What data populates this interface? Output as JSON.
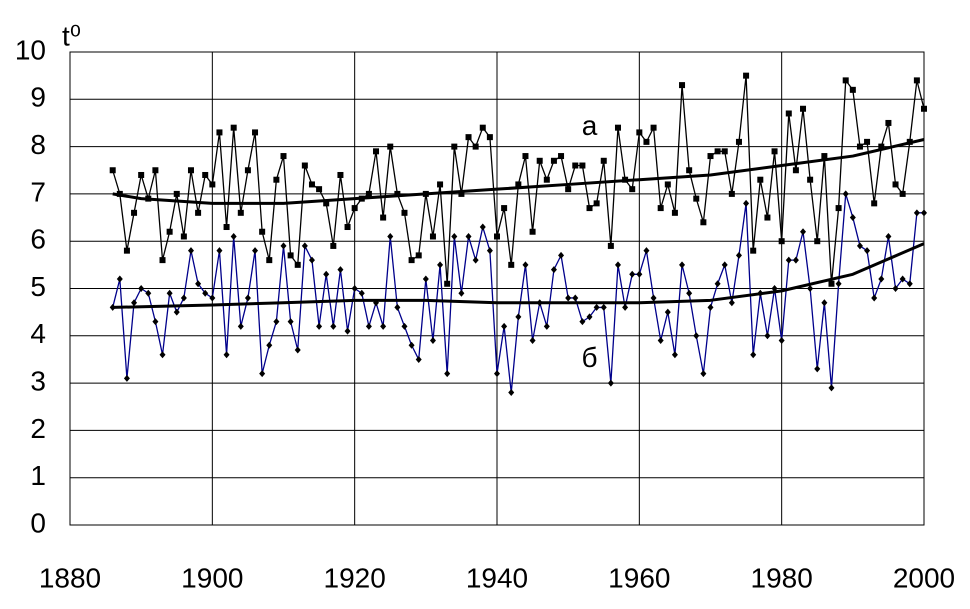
{
  "chart_data": {
    "type": "line",
    "y_label": "t⁰",
    "xlim": [
      1880,
      2000
    ],
    "xticks": [
      1880,
      1900,
      1920,
      1940,
      1960,
      1980,
      2000
    ],
    "ylim": [
      0,
      10
    ],
    "yticks": [
      0,
      1,
      2,
      3,
      4,
      5,
      6,
      7,
      8,
      9,
      10
    ],
    "grid": true,
    "annotations": [
      {
        "text": "а",
        "x": 1953,
        "y": 8.4
      },
      {
        "text": "б",
        "x": 1953,
        "y": 3.5
      }
    ],
    "series": [
      {
        "color": "#000000",
        "marker": "square",
        "x": [
          1886,
          1887,
          1888,
          1889,
          1890,
          1891,
          1892,
          1893,
          1894,
          1895,
          1896,
          1897,
          1898,
          1899,
          1900,
          1901,
          1902,
          1903,
          1904,
          1905,
          1906,
          1907,
          1908,
          1909,
          1910,
          1911,
          1912,
          1913,
          1914,
          1915,
          1916,
          1917,
          1918,
          1919,
          1920,
          1921,
          1922,
          1923,
          1924,
          1925,
          1926,
          1927,
          1928,
          1929,
          1930,
          1931,
          1932,
          1933,
          1934,
          1935,
          1936,
          1937,
          1938,
          1939,
          1940,
          1941,
          1942,
          1943,
          1944,
          1945,
          1946,
          1947,
          1948,
          1949,
          1950,
          1951,
          1952,
          1953,
          1954,
          1955,
          1956,
          1957,
          1958,
          1959,
          1960,
          1961,
          1962,
          1963,
          1964,
          1965,
          1966,
          1967,
          1968,
          1969,
          1970,
          1971,
          1972,
          1973,
          1974,
          1975,
          1976,
          1977,
          1978,
          1979,
          1980,
          1981,
          1982,
          1983,
          1984,
          1985,
          1986,
          1987,
          1988,
          1989,
          1990,
          1991,
          1992,
          1993,
          1994,
          1995,
          1996,
          1997,
          1998,
          1999,
          2000
        ],
        "values": [
          7.5,
          7.0,
          5.8,
          6.6,
          7.4,
          6.9,
          7.5,
          5.6,
          6.2,
          7.0,
          6.1,
          7.5,
          6.6,
          7.4,
          7.2,
          8.3,
          6.3,
          8.4,
          6.6,
          7.5,
          8.3,
          6.2,
          5.6,
          7.3,
          7.8,
          5.7,
          5.5,
          7.6,
          7.2,
          7.1,
          6.8,
          5.9,
          7.4,
          6.3,
          6.7,
          6.9,
          7.0,
          7.9,
          6.5,
          8.0,
          7.0,
          6.6,
          5.6,
          5.7,
          7.0,
          6.1,
          7.2,
          5.1,
          8.0,
          7.0,
          8.2,
          8.0,
          8.4,
          8.2,
          6.1,
          6.7,
          5.5,
          7.2,
          7.8,
          6.2,
          7.7,
          7.3,
          7.7,
          7.8,
          7.1,
          7.6,
          7.6,
          6.7,
          6.8,
          7.7,
          5.9,
          8.4,
          7.3,
          7.1,
          8.3,
          8.1,
          8.4,
          6.7,
          7.2,
          6.6,
          9.3,
          7.5,
          6.9,
          6.4,
          7.8,
          7.9,
          7.9,
          7.0,
          8.1,
          9.5,
          5.8,
          7.3,
          6.5,
          7.9,
          6.0,
          8.7,
          7.5,
          8.8,
          7.3,
          6.0,
          7.8,
          5.1,
          6.7,
          9.4,
          9.2,
          8.0,
          8.1,
          6.8,
          8.0,
          8.5,
          7.2,
          7.0,
          8.1,
          9.4,
          8.8
        ]
      },
      {
        "color": "#00008b",
        "marker": "diamond",
        "x": [
          1886,
          1887,
          1888,
          1889,
          1890,
          1891,
          1892,
          1893,
          1894,
          1895,
          1896,
          1897,
          1898,
          1899,
          1900,
          1901,
          1902,
          1903,
          1904,
          1905,
          1906,
          1907,
          1908,
          1909,
          1910,
          1911,
          1912,
          1913,
          1914,
          1915,
          1916,
          1917,
          1918,
          1919,
          1920,
          1921,
          1922,
          1923,
          1924,
          1925,
          1926,
          1927,
          1928,
          1929,
          1930,
          1931,
          1932,
          1933,
          1934,
          1935,
          1936,
          1937,
          1938,
          1939,
          1940,
          1941,
          1942,
          1943,
          1944,
          1945,
          1946,
          1947,
          1948,
          1949,
          1950,
          1951,
          1952,
          1953,
          1954,
          1955,
          1956,
          1957,
          1958,
          1959,
          1960,
          1961,
          1962,
          1963,
          1964,
          1965,
          1966,
          1967,
          1968,
          1969,
          1970,
          1971,
          1972,
          1973,
          1974,
          1975,
          1976,
          1977,
          1978,
          1979,
          1980,
          1981,
          1982,
          1983,
          1984,
          1985,
          1986,
          1987,
          1988,
          1989,
          1990,
          1991,
          1992,
          1993,
          1994,
          1995,
          1996,
          1997,
          1998,
          1999,
          2000
        ],
        "values": [
          4.6,
          5.2,
          3.1,
          4.7,
          5.0,
          4.9,
          4.3,
          3.6,
          4.9,
          4.5,
          4.8,
          5.8,
          5.1,
          4.9,
          4.8,
          5.8,
          3.6,
          6.1,
          4.2,
          4.8,
          5.8,
          3.2,
          3.8,
          4.3,
          5.9,
          4.3,
          3.7,
          5.9,
          5.6,
          4.2,
          5.3,
          4.2,
          5.4,
          4.1,
          5.0,
          4.9,
          4.2,
          4.7,
          4.2,
          6.1,
          4.6,
          4.2,
          3.8,
          3.5,
          5.2,
          3.9,
          5.5,
          3.2,
          6.1,
          4.9,
          6.1,
          5.6,
          6.3,
          5.8,
          3.2,
          4.2,
          2.8,
          4.4,
          5.5,
          3.9,
          4.7,
          4.2,
          5.4,
          5.7,
          4.8,
          4.8,
          4.3,
          4.4,
          4.6,
          4.6,
          3.0,
          5.5,
          4.6,
          5.3,
          5.3,
          5.8,
          4.8,
          3.9,
          4.5,
          3.6,
          5.5,
          4.9,
          4.0,
          3.2,
          4.6,
          5.1,
          5.5,
          4.7,
          5.7,
          6.8,
          3.6,
          4.9,
          4.0,
          5.0,
          3.9,
          5.6,
          5.6,
          6.2,
          5.0,
          3.3,
          4.7,
          2.9,
          5.1,
          7.0,
          6.5,
          5.9,
          5.8,
          4.8,
          5.2,
          6.1,
          5.0,
          5.2,
          5.1,
          6.6,
          6.6
        ]
      },
      {
        "color": "#000000",
        "marker": "none",
        "x": [
          1886,
          1890,
          1900,
          1910,
          1920,
          1930,
          1940,
          1950,
          1960,
          1970,
          1980,
          1990,
          2000
        ],
        "values": [
          7.0,
          6.9,
          6.8,
          6.8,
          6.9,
          7.0,
          7.1,
          7.2,
          7.3,
          7.4,
          7.6,
          7.8,
          8.15
        ]
      },
      {
        "color": "#000000",
        "marker": "none",
        "x": [
          1886,
          1900,
          1910,
          1920,
          1930,
          1940,
          1950,
          1960,
          1970,
          1980,
          1990,
          2000
        ],
        "values": [
          4.6,
          4.65,
          4.7,
          4.75,
          4.75,
          4.7,
          4.7,
          4.7,
          4.75,
          4.95,
          5.3,
          5.95
        ]
      }
    ]
  }
}
